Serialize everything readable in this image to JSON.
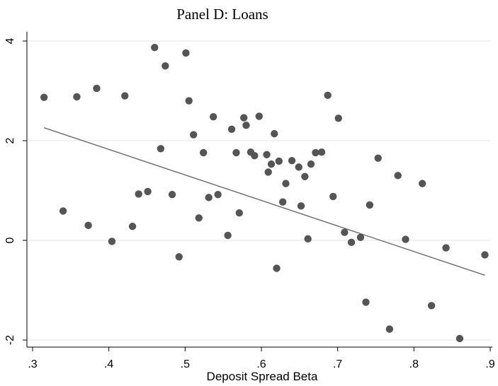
{
  "chart_data": {
    "type": "scatter",
    "title": "Panel D: Loans",
    "xlabel": "Deposit Spread Beta",
    "ylabel": "",
    "xlim": [
      0.3,
      0.9
    ],
    "ylim": [
      -2,
      4
    ],
    "xticks": [
      ".3",
      ".4",
      ".5",
      ".6",
      ".7",
      ".8",
      ".9"
    ],
    "yticks": [
      "-2",
      "0",
      "2",
      "4"
    ],
    "grid": "horizontal",
    "colors": {
      "points": "#555555",
      "fit_line": "#6b6b6b",
      "grid": "#e5e5e5"
    },
    "points": [
      [
        0.315,
        2.87
      ],
      [
        0.34,
        0.59
      ],
      [
        0.358,
        2.88
      ],
      [
        0.373,
        0.3
      ],
      [
        0.384,
        3.05
      ],
      [
        0.404,
        -0.02
      ],
      [
        0.421,
        2.9
      ],
      [
        0.431,
        0.28
      ],
      [
        0.439,
        0.93
      ],
      [
        0.451,
        0.98
      ],
      [
        0.46,
        3.87
      ],
      [
        0.468,
        1.84
      ],
      [
        0.474,
        3.5
      ],
      [
        0.483,
        0.92
      ],
      [
        0.492,
        -0.33
      ],
      [
        0.501,
        3.76
      ],
      [
        0.505,
        2.8
      ],
      [
        0.511,
        2.12
      ],
      [
        0.518,
        0.45
      ],
      [
        0.524,
        1.76
      ],
      [
        0.531,
        0.86
      ],
      [
        0.537,
        2.48
      ],
      [
        0.543,
        0.92
      ],
      [
        0.556,
        0.1
      ],
      [
        0.561,
        2.23
      ],
      [
        0.567,
        1.76
      ],
      [
        0.571,
        0.55
      ],
      [
        0.577,
        2.46
      ],
      [
        0.58,
        2.31
      ],
      [
        0.586,
        1.77
      ],
      [
        0.591,
        1.7
      ],
      [
        0.597,
        2.49
      ],
      [
        0.607,
        1.72
      ],
      [
        0.609,
        1.37
      ],
      [
        0.613,
        1.53
      ],
      [
        0.617,
        2.14
      ],
      [
        0.62,
        -0.56
      ],
      [
        0.623,
        1.59
      ],
      [
        0.628,
        0.77
      ],
      [
        0.632,
        1.14
      ],
      [
        0.64,
        1.6
      ],
      [
        0.649,
        1.47
      ],
      [
        0.652,
        0.69
      ],
      [
        0.657,
        1.28
      ],
      [
        0.661,
        0.03
      ],
      [
        0.665,
        1.53
      ],
      [
        0.671,
        1.76
      ],
      [
        0.679,
        1.77
      ],
      [
        0.687,
        2.91
      ],
      [
        0.694,
        0.88
      ],
      [
        0.701,
        2.45
      ],
      [
        0.709,
        0.16
      ],
      [
        0.718,
        -0.04
      ],
      [
        0.73,
        0.06
      ],
      [
        0.737,
        -1.24
      ],
      [
        0.742,
        0.71
      ],
      [
        0.753,
        1.65
      ],
      [
        0.768,
        -1.78
      ],
      [
        0.779,
        1.3
      ],
      [
        0.789,
        0.02
      ],
      [
        0.811,
        1.14
      ],
      [
        0.823,
        -1.31
      ],
      [
        0.842,
        -0.15
      ],
      [
        0.86,
        -1.97
      ],
      [
        0.893,
        -0.29
      ]
    ],
    "fit_line": {
      "x": [
        0.315,
        0.893
      ],
      "y": [
        2.26,
        -0.7
      ]
    }
  }
}
